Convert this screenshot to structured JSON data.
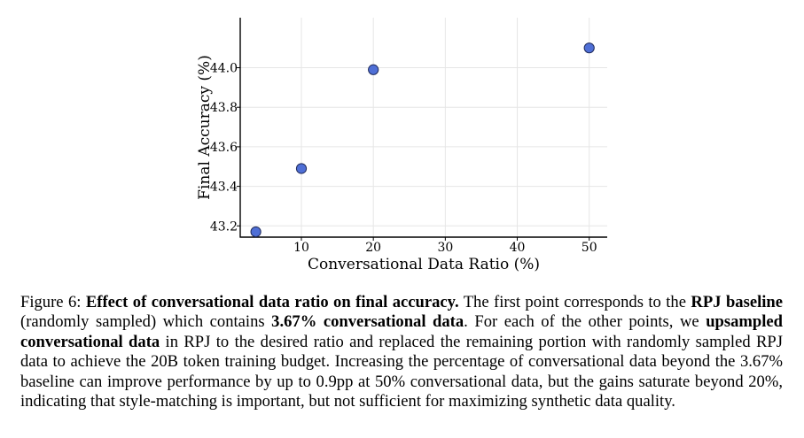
{
  "chart_data": {
    "type": "scatter",
    "xlabel": "Conversational Data Ratio (%)",
    "ylabel": "Final Accuracy (%)",
    "xlim": [
      1.5,
      52.5
    ],
    "ylim": [
      43.143,
      44.253
    ],
    "x_ticks": [
      10,
      20,
      30,
      40,
      50
    ],
    "x_tick_labels": [
      "10",
      "20",
      "30",
      "40",
      "50"
    ],
    "y_ticks": [
      43.2,
      43.4,
      43.6,
      43.8,
      44.0
    ],
    "y_tick_labels": [
      "43.2",
      "43.4",
      "43.6",
      "43.8",
      "44.0"
    ],
    "grid": true,
    "point_color": "#4f6fd6",
    "point_edge_color": "#1f2a5a",
    "x": [
      3.67,
      10,
      20,
      50
    ],
    "y": [
      43.17,
      43.49,
      43.99,
      44.1
    ]
  },
  "caption": {
    "figure_label": "Figure 6: ",
    "title": "Effect of conversational data ratio on final accuracy.",
    "t1": " The first point corresponds to the ",
    "b1": "RPJ baseline",
    "t2": " (randomly sampled) which contains ",
    "b2": "3.67% conversational data",
    "t3": ". For each of the other points, we ",
    "b3": "upsampled conversational data",
    "t4": " in RPJ to the desired ratio and replaced the remaining portion with randomly sampled RPJ data to achieve the 20B token training budget. Increasing the percentage of conversational data beyond the 3.67% baseline can improve performance by up to 0.9pp at 50% conversational data, but the gains saturate beyond 20%, indicating that style-matching is important, but not sufficient for maximizing synthetic data quality."
  }
}
